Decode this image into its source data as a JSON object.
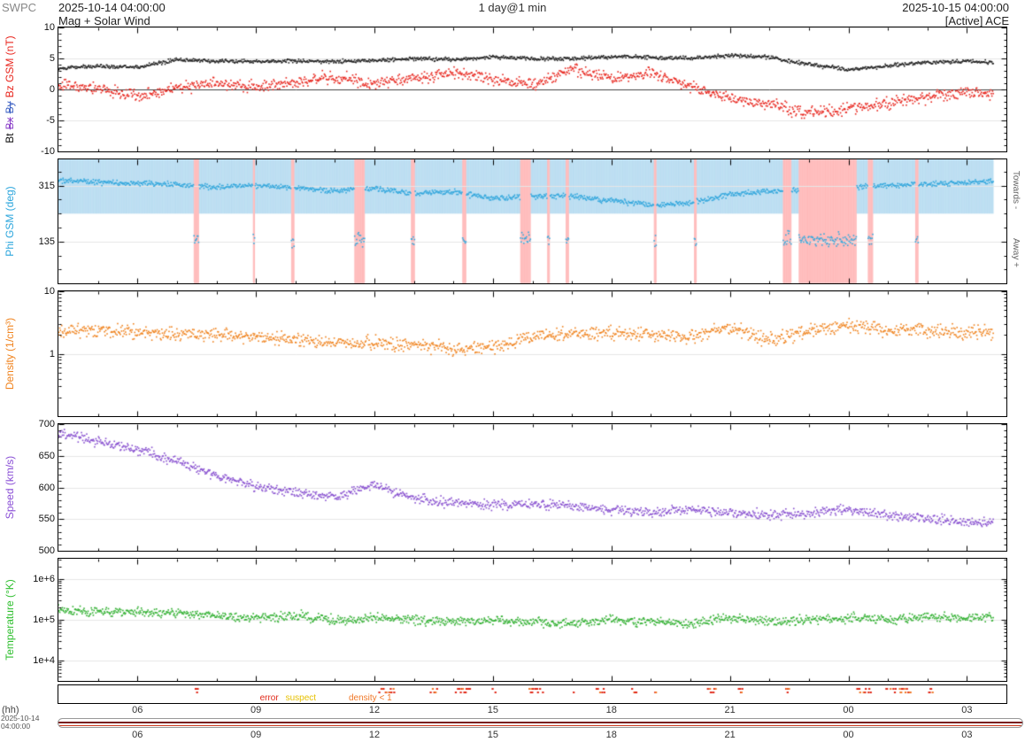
{
  "header": {
    "brand": "SWPC",
    "start_datetime": "2025-10-14 04:00:00",
    "subtitle": "Mag + Solar Wind",
    "center": "1 day@1 min",
    "end_datetime": "2025-10-15 04:00:00",
    "source": "[Active] ACE"
  },
  "time_axis": {
    "unit_label": "(hh)",
    "start_hour_of_day": 4,
    "span_hours": 24,
    "data_end_hour": 23.67,
    "major_tick_hours": [
      2,
      5,
      8,
      11,
      14,
      17,
      20,
      23
    ],
    "tick_labels": [
      "06",
      "09",
      "12",
      "15",
      "18",
      "21",
      "00",
      "03"
    ],
    "footer_date": "2025-10-14",
    "footer_time": "04:00:00"
  },
  "chart_data": [
    {
      "id": "mag",
      "type": "scatter",
      "scale": "linear",
      "ylim": [
        -10,
        10
      ],
      "height": 142,
      "zero_line": 0,
      "yminor_step": 1,
      "yticks": [
        {
          "v": 10,
          "label": "10"
        },
        {
          "v": 5,
          "label": "5"
        },
        {
          "v": 0,
          "label": "0"
        },
        {
          "v": -5,
          "label": "-5"
        },
        {
          "v": -10,
          "label": "-10"
        }
      ],
      "ylabel_tokens": [
        {
          "text": "Bt",
          "color": "#111111"
        },
        {
          "text": "Bx",
          "color": "#8a3fc8",
          "strike": true
        },
        {
          "text": "By",
          "color": "#3f63c4",
          "strike": true
        },
        {
          "text": "Bz GSM (nT)",
          "color": "#e8241c"
        }
      ],
      "series": [
        {
          "name": "Bz",
          "color": "#e8241c",
          "noise": 1.1,
          "anchors": [
            0.6,
            0.2,
            -1.2,
            0.4,
            1.0,
            0.3,
            1.2,
            2.2,
            0.8,
            1.8,
            2.8,
            1.5,
            0.8,
            3.2,
            1.8,
            2.6,
            0.5,
            -1.5,
            -2.5,
            -3.8,
            -3.2,
            -2.2,
            -1.2,
            -0.5,
            -0.8
          ]
        },
        {
          "name": "Bt",
          "color": "#222222",
          "noise": 0.35,
          "anchors": [
            3.4,
            3.7,
            3.6,
            4.8,
            4.6,
            4.5,
            4.6,
            4.5,
            4.7,
            5.0,
            4.8,
            5.2,
            5.0,
            4.9,
            5.3,
            5.1,
            5.0,
            5.5,
            5.2,
            4.0,
            3.2,
            3.8,
            4.4,
            4.5,
            4.3
          ]
        }
      ]
    },
    {
      "id": "phi",
      "type": "scatter",
      "scale": "linear",
      "ylim": [
        0,
        400
      ],
      "height": 142,
      "yminor_step": 45,
      "yticks": [
        {
          "v": 315,
          "label": "315"
        },
        {
          "v": 135,
          "label": "135"
        }
      ],
      "ylabel_tokens": [
        {
          "text": "Phi GSM (deg)",
          "color": "#2aa5dc"
        }
      ],
      "right_labels": [
        {
          "text": "Towards -",
          "pos": "top"
        },
        {
          "text": "Away +",
          "pos": "bottom"
        }
      ],
      "sector_shading": {
        "towards_color": "rgba(120,190,230,0.5)",
        "away_color": "rgba(255,120,120,0.5)",
        "boundary_value": 225,
        "away_value": 140,
        "away_noise": 28,
        "away_intervals_hours": [
          [
            3.42,
            3.55
          ],
          [
            4.92,
            4.98
          ],
          [
            5.9,
            5.97
          ],
          [
            7.5,
            7.75
          ],
          [
            8.92,
            9.02
          ],
          [
            10.22,
            10.32
          ],
          [
            11.7,
            11.95
          ],
          [
            12.38,
            12.44
          ],
          [
            12.85,
            12.92
          ],
          [
            15.08,
            15.14
          ],
          [
            16.1,
            16.16
          ],
          [
            18.35,
            18.55
          ],
          [
            18.75,
            20.2
          ],
          [
            20.5,
            20.62
          ],
          [
            21.7,
            21.78
          ]
        ]
      },
      "series": [
        {
          "name": "Phi",
          "color": "#35a8dd",
          "noise": 10,
          "anchors": [
            332,
            328,
            322,
            318,
            312,
            316,
            308,
            298,
            306,
            290,
            296,
            274,
            280,
            282,
            266,
            254,
            258,
            288,
            296,
            300,
            310,
            316,
            320,
            326,
            330
          ]
        }
      ]
    },
    {
      "id": "density",
      "type": "scatter",
      "scale": "log",
      "ylim": [
        0.1,
        10
      ],
      "height": 143,
      "yticks": [
        {
          "v": 10,
          "label": "10"
        },
        {
          "v": 1,
          "label": "1"
        }
      ],
      "ylabel_tokens": [
        {
          "text": "Density (1/cm³)",
          "color": "#f0831e"
        }
      ],
      "series": [
        {
          "name": "Density",
          "color": "#f0831e",
          "noise_log10": 0.13,
          "anchors": [
            2.3,
            2.4,
            2.2,
            2.0,
            2.1,
            1.8,
            1.7,
            1.5,
            1.5,
            1.4,
            1.15,
            1.3,
            1.9,
            2.1,
            2.2,
            2.0,
            1.9,
            2.6,
            1.6,
            2.3,
            2.9,
            2.4,
            2.3,
            2.2,
            2.3
          ]
        }
      ]
    },
    {
      "id": "speed",
      "type": "scatter",
      "scale": "linear",
      "ylim": [
        500,
        700
      ],
      "height": 145,
      "yminor_step": 10,
      "yticks": [
        {
          "v": 700,
          "label": "700"
        },
        {
          "v": 650,
          "label": "650"
        },
        {
          "v": 600,
          "label": "600"
        },
        {
          "v": 550,
          "label": "550"
        },
        {
          "v": 500,
          "label": "500"
        }
      ],
      "ylabel_tokens": [
        {
          "text": "Speed (km/s)",
          "color": "#8a4fd6"
        }
      ],
      "series": [
        {
          "name": "Speed",
          "color": "#8850d0",
          "noise": 9,
          "anchors": [
            685,
            672,
            660,
            642,
            618,
            602,
            592,
            585,
            605,
            582,
            575,
            572,
            575,
            570,
            565,
            560,
            565,
            560,
            556,
            560,
            565,
            556,
            550,
            546,
            544
          ]
        }
      ]
    },
    {
      "id": "temperature",
      "type": "scatter",
      "scale": "log",
      "ylim": [
        3162,
        3162278
      ],
      "height": 140,
      "yticks": [
        {
          "v": 1000000,
          "label": "1e+6"
        },
        {
          "v": 100000,
          "label": "1e+5"
        },
        {
          "v": 10000,
          "label": "1e+4"
        }
      ],
      "ylabel_tokens": [
        {
          "text": "Temperature (°K)",
          "color": "#2fbf2f"
        }
      ],
      "series": [
        {
          "name": "Temperature",
          "color": "#30b030",
          "noise_log10": 0.13,
          "anchors": [
            175000,
            160000,
            158000,
            142000,
            128000,
            115000,
            125000,
            100000,
            112000,
            100000,
            90000,
            100000,
            90000,
            80000,
            100000,
            90000,
            80000,
            112000,
            90000,
            100000,
            112000,
            100000,
            118000,
            112000,
            125000
          ]
        }
      ]
    }
  ],
  "flags": {
    "height": 22,
    "legend": [
      {
        "label": "error",
        "color": "#e02818",
        "hour": 5.1
      },
      {
        "label": "suspect",
        "color": "#e6c000",
        "hour": 5.75
      },
      {
        "label": "density < 1",
        "color": "#f07828",
        "hour": 7.35
      }
    ],
    "mark_colors": [
      "#e02818",
      "#f07828"
    ],
    "mark_clusters_hours": [
      [
        3.45,
        3.52
      ],
      [
        8.1,
        8.5
      ],
      [
        9.4,
        9.65
      ],
      [
        10.0,
        10.45
      ],
      [
        10.95,
        11.05
      ],
      [
        11.9,
        12.25
      ],
      [
        12.95,
        13.05
      ],
      [
        13.6,
        13.85
      ],
      [
        14.5,
        14.62
      ],
      [
        15.05,
        15.12
      ],
      [
        16.4,
        16.62
      ],
      [
        17.2,
        17.32
      ],
      [
        18.4,
        18.5
      ],
      [
        20.2,
        20.55
      ],
      [
        20.9,
        21.55
      ],
      [
        22.0,
        22.12
      ]
    ]
  },
  "overview_bar": {
    "line_colors": [
      "#7a1f1f",
      "#cc3b1f"
    ]
  }
}
